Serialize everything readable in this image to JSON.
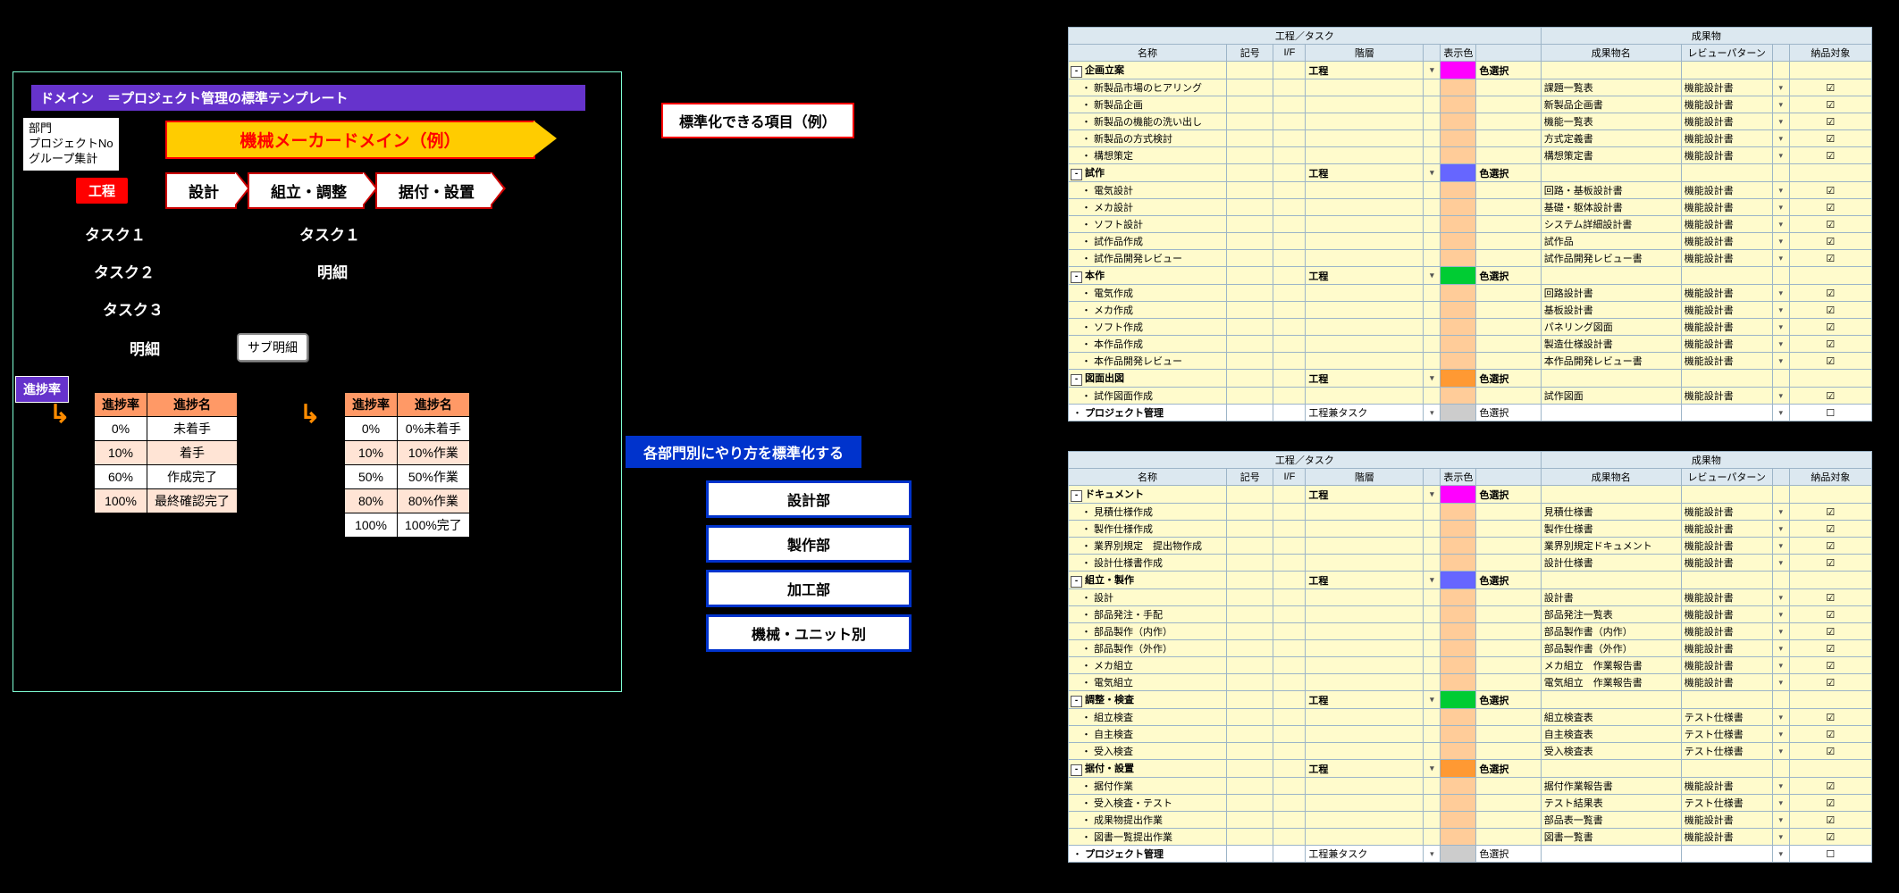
{
  "left": {
    "domain_title": "ドメイン　＝プロジェクト管理の標準テンプレート",
    "meta_box": "部門\nプロジェクトNo\nグループ集計",
    "banner": "機械メーカードメイン（例）",
    "process_tag": "工程",
    "chevrons": [
      "設計",
      "組立・調整",
      "据付・設置"
    ],
    "tasks": [
      "タスク１",
      "タスク１",
      "タスク２",
      "明細",
      "タスク３",
      "明細"
    ],
    "sub_chip": "サブ明細",
    "progress_tag": "進捗率",
    "ptable1": {
      "headers": [
        "進捗率",
        "進捗名"
      ],
      "rows": [
        [
          "0%",
          "未着手"
        ],
        [
          "10%",
          "着手"
        ],
        [
          "60%",
          "作成完了"
        ],
        [
          "100%",
          "最終確認完了"
        ]
      ]
    },
    "ptable2": {
      "headers": [
        "進捗率",
        "進捗名"
      ],
      "rows": [
        [
          "0%",
          "0%未着手"
        ],
        [
          "10%",
          "10%作業"
        ],
        [
          "50%",
          "50%作業"
        ],
        [
          "80%",
          "80%作業"
        ],
        [
          "100%",
          "100%完了"
        ]
      ]
    }
  },
  "center": {
    "callout": "標準化できる項目（例）",
    "section_title": "各部門別にやり方を標準化する",
    "depts": [
      "設計部",
      "製作部",
      "加工部",
      "機械・ユニット別"
    ]
  },
  "colors": {
    "magenta": "#ff00ff",
    "blue": "#6666ff",
    "green": "#00cc33",
    "orange": "#ff9933",
    "peach": "#ffcc99",
    "gray": "#cccccc"
  },
  "grid_headers": {
    "top_group1": "工程／タスク",
    "top_group2": "成果物",
    "cols": [
      "名称",
      "記号",
      "I/F",
      "階層",
      "",
      "表示色",
      "",
      "成果物名",
      "レビューパターン",
      "",
      "納品対象"
    ]
  },
  "grid1": [
    {
      "type": "sec",
      "name": "企画立案",
      "layer": "工程",
      "color": "magenta"
    },
    {
      "type": "leaf",
      "name": "新製品市場のヒアリング",
      "deliv": "課題一覧表",
      "rev": "機能設計書",
      "chk": true,
      "cc": "peach"
    },
    {
      "type": "leaf",
      "name": "新製品企画",
      "deliv": "新製品企画書",
      "rev": "機能設計書",
      "chk": true,
      "cc": "peach"
    },
    {
      "type": "leaf",
      "name": "新製品の機能の洗い出し",
      "deliv": "機能一覧表",
      "rev": "機能設計書",
      "chk": true,
      "cc": "peach"
    },
    {
      "type": "leaf",
      "name": "新製品の方式検討",
      "deliv": "方式定義書",
      "rev": "機能設計書",
      "chk": true,
      "cc": "peach"
    },
    {
      "type": "leaf",
      "name": "構想策定",
      "deliv": "構想策定書",
      "rev": "機能設計書",
      "chk": true,
      "cc": "peach"
    },
    {
      "type": "sec",
      "name": "試作",
      "layer": "工程",
      "color": "blue"
    },
    {
      "type": "leaf",
      "name": "電気設計",
      "deliv": "回路・基板設計書",
      "rev": "機能設計書",
      "chk": true,
      "cc": "peach"
    },
    {
      "type": "leaf",
      "name": "メカ設計",
      "deliv": "基礎・躯体設計書",
      "rev": "機能設計書",
      "chk": true,
      "cc": "peach"
    },
    {
      "type": "leaf",
      "name": "ソフト設計",
      "deliv": "システム詳細設計書",
      "rev": "機能設計書",
      "chk": true,
      "cc": "peach"
    },
    {
      "type": "leaf",
      "name": "試作品作成",
      "deliv": "試作品",
      "rev": "機能設計書",
      "chk": true,
      "cc": "peach"
    },
    {
      "type": "leaf",
      "name": "試作品開発レビュー",
      "deliv": "試作品開発レビュー書",
      "rev": "機能設計書",
      "chk": true,
      "cc": "peach"
    },
    {
      "type": "sec",
      "name": "本作",
      "layer": "工程",
      "color": "green"
    },
    {
      "type": "leaf",
      "name": "電気作成",
      "deliv": "回路設計書",
      "rev": "機能設計書",
      "chk": true,
      "cc": "peach"
    },
    {
      "type": "leaf",
      "name": "メカ作成",
      "deliv": "基板設計書",
      "rev": "機能設計書",
      "chk": true,
      "cc": "peach"
    },
    {
      "type": "leaf",
      "name": "ソフト作成",
      "deliv": "パネリング図面",
      "rev": "機能設計書",
      "chk": true,
      "cc": "peach"
    },
    {
      "type": "leaf",
      "name": "本作品作成",
      "deliv": "製造仕様設計書",
      "rev": "機能設計書",
      "chk": true,
      "cc": "peach"
    },
    {
      "type": "leaf",
      "name": "本作品開発レビュー",
      "deliv": "本作品開発レビュー書",
      "rev": "機能設計書",
      "chk": true,
      "cc": "peach"
    },
    {
      "type": "sec",
      "name": "図面出図",
      "layer": "工程",
      "color": "orange"
    },
    {
      "type": "leaf",
      "name": "試作図面作成",
      "deliv": "試作図面",
      "rev": "機能設計書",
      "chk": true,
      "cc": "peach"
    },
    {
      "type": "pm",
      "name": "プロジェクト管理",
      "layer": "工程兼タスク",
      "color": "gray",
      "chk": false
    }
  ],
  "grid2": [
    {
      "type": "sec",
      "name": "ドキュメント",
      "layer": "工程",
      "color": "magenta"
    },
    {
      "type": "leaf",
      "name": "見積仕様作成",
      "deliv": "見積仕様書",
      "rev": "機能設計書",
      "chk": true,
      "cc": "peach"
    },
    {
      "type": "leaf",
      "name": "製作仕様作成",
      "deliv": "製作仕様書",
      "rev": "機能設計書",
      "chk": true,
      "cc": "peach"
    },
    {
      "type": "leaf",
      "name": "業界別規定　提出物作成",
      "deliv": "業界別規定ドキュメント",
      "rev": "機能設計書",
      "chk": true,
      "cc": "peach"
    },
    {
      "type": "leaf",
      "name": "設計仕様書作成",
      "deliv": "設計仕様書",
      "rev": "機能設計書",
      "chk": true,
      "cc": "peach"
    },
    {
      "type": "sec",
      "name": "組立・製作",
      "layer": "工程",
      "color": "blue"
    },
    {
      "type": "leaf",
      "name": "設計",
      "deliv": "設計書",
      "rev": "機能設計書",
      "chk": true,
      "cc": "peach"
    },
    {
      "type": "leaf",
      "name": "部品発注・手配",
      "deliv": "部品発注一覧表",
      "rev": "機能設計書",
      "chk": true,
      "cc": "peach"
    },
    {
      "type": "leaf",
      "name": "部品製作（内作）",
      "deliv": "部品製作書（内作）",
      "rev": "機能設計書",
      "chk": true,
      "cc": "peach"
    },
    {
      "type": "leaf",
      "name": "部品製作（外作）",
      "deliv": "部品製作書（外作）",
      "rev": "機能設計書",
      "chk": true,
      "cc": "peach"
    },
    {
      "type": "leaf",
      "name": "メカ組立",
      "deliv": "メカ組立　作業報告書",
      "rev": "機能設計書",
      "chk": true,
      "cc": "peach"
    },
    {
      "type": "leaf",
      "name": "電気組立",
      "deliv": "電気組立　作業報告書",
      "rev": "機能設計書",
      "chk": true,
      "cc": "peach"
    },
    {
      "type": "sec",
      "name": "調整・検査",
      "layer": "工程",
      "color": "green"
    },
    {
      "type": "leaf",
      "name": "組立検査",
      "deliv": "組立検査表",
      "rev": "テスト仕様書",
      "chk": true,
      "cc": "peach"
    },
    {
      "type": "leaf",
      "name": "自主検査",
      "deliv": "自主検査表",
      "rev": "テスト仕様書",
      "chk": true,
      "cc": "peach"
    },
    {
      "type": "leaf",
      "name": "受入検査",
      "deliv": "受入検査表",
      "rev": "テスト仕様書",
      "chk": true,
      "cc": "peach"
    },
    {
      "type": "sec",
      "name": "据付・設置",
      "layer": "工程",
      "color": "orange"
    },
    {
      "type": "leaf",
      "name": "据付作業",
      "deliv": "据付作業報告書",
      "rev": "機能設計書",
      "chk": true,
      "cc": "peach"
    },
    {
      "type": "leaf",
      "name": "受入検査・テスト",
      "deliv": "テスト結果表",
      "rev": "テスト仕様書",
      "chk": true,
      "cc": "peach"
    },
    {
      "type": "leaf",
      "name": "成果物提出作業",
      "deliv": "部品表一覧書",
      "rev": "機能設計書",
      "chk": true,
      "cc": "peach"
    },
    {
      "type": "leaf",
      "name": "図書一覧提出作業",
      "deliv": "図書一覧書",
      "rev": "機能設計書",
      "chk": true,
      "cc": "peach"
    },
    {
      "type": "pm",
      "name": "プロジェクト管理",
      "layer": "工程兼タスク",
      "color": "gray",
      "chk": false
    }
  ],
  "color_select_label": "色選択"
}
